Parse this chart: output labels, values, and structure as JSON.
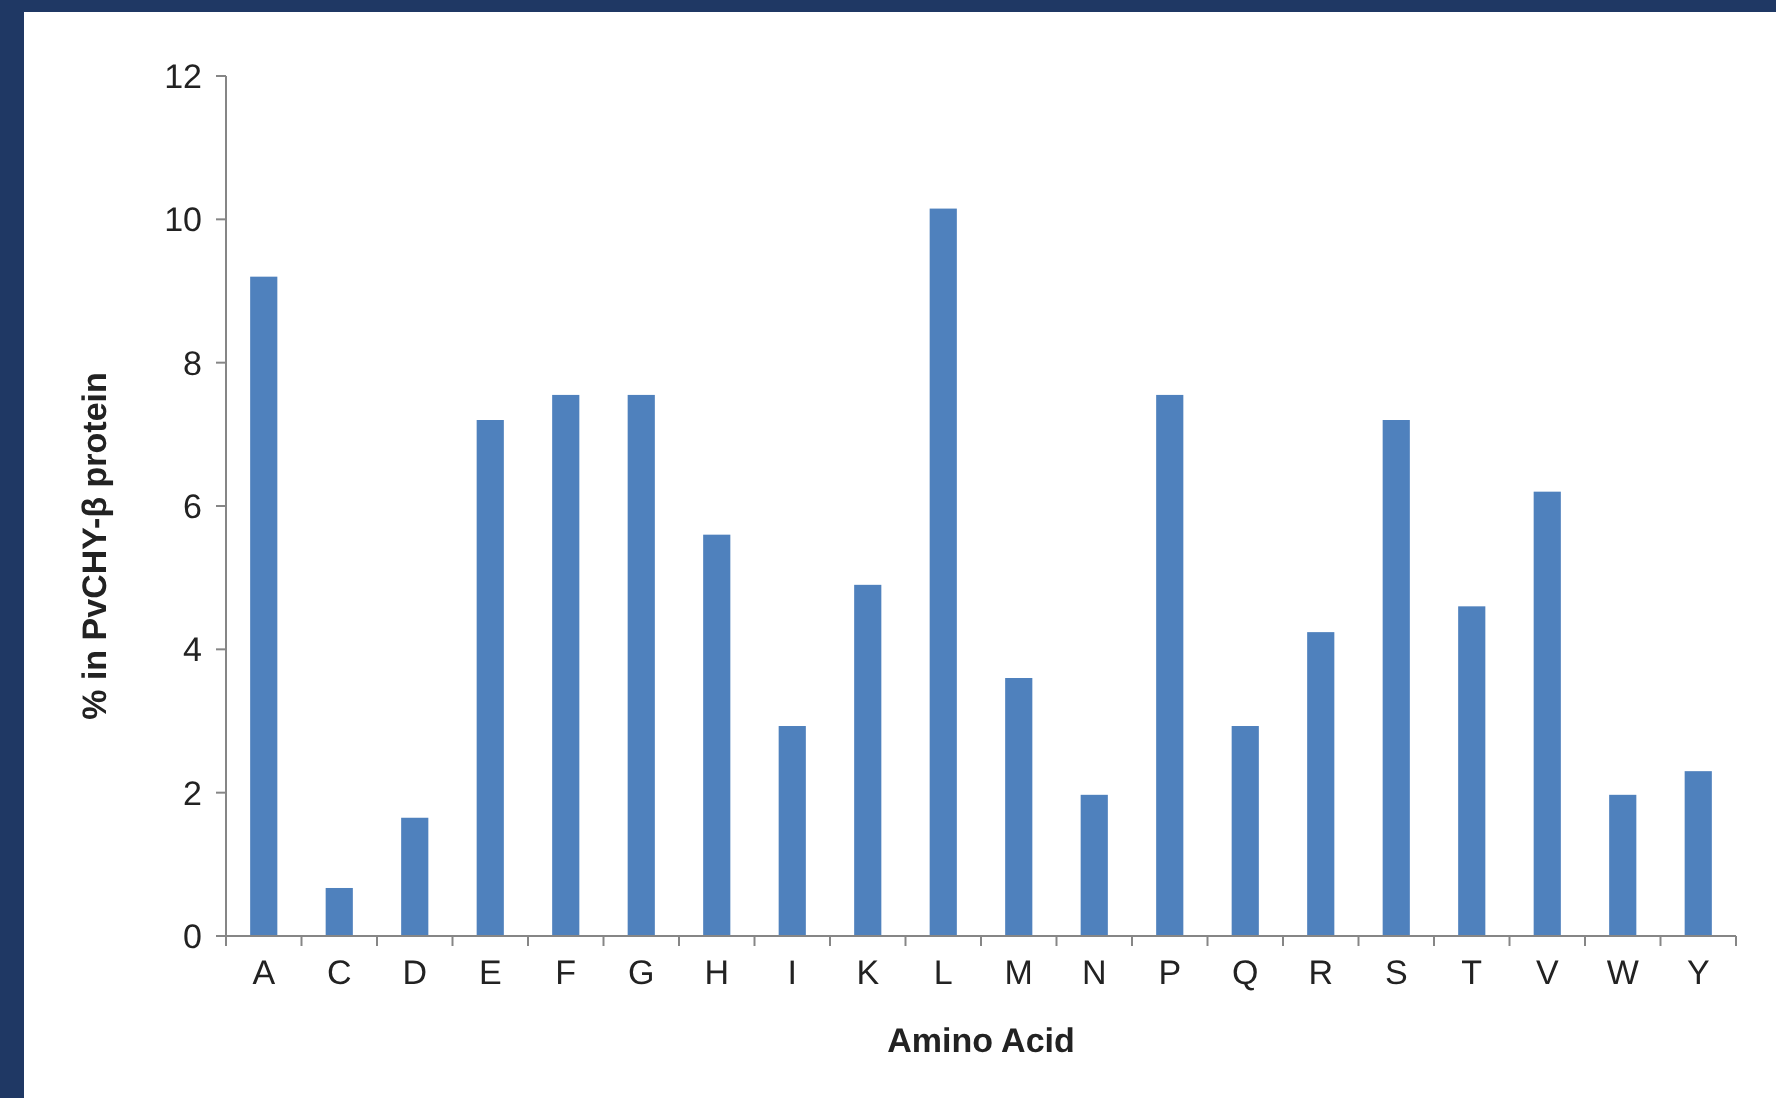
{
  "chart_data": {
    "type": "bar",
    "xlabel": "Amino Acid",
    "ylabel": "% in PvCHY-β protein",
    "categories": [
      "A",
      "C",
      "D",
      "E",
      "F",
      "G",
      "H",
      "I",
      "K",
      "L",
      "M",
      "N",
      "P",
      "Q",
      "R",
      "S",
      "T",
      "V",
      "W",
      "Y"
    ],
    "values": [
      9.2,
      0.67,
      1.65,
      7.2,
      7.55,
      7.55,
      5.6,
      2.93,
      4.9,
      10.15,
      3.6,
      1.97,
      7.55,
      2.93,
      4.24,
      7.2,
      4.6,
      6.2,
      1.97,
      2.3
    ],
    "color": "#4f81bd",
    "ylim": [
      0,
      12
    ],
    "yticks": [
      0,
      2,
      4,
      6,
      8,
      10,
      12
    ],
    "grid": false
  }
}
